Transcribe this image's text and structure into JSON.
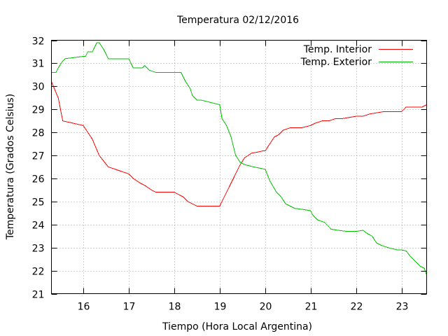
{
  "chart_data": {
    "type": "line",
    "title": "Temperatura 02/12/2016",
    "xlabel": "Tiempo (Hora Local Argentina)",
    "ylabel": "Temperatura (Grados Celsius)",
    "xlim": [
      15.3,
      23.55
    ],
    "ylim": [
      21,
      32
    ],
    "x_ticks": [
      16,
      17,
      18,
      19,
      20,
      21,
      22,
      23
    ],
    "y_ticks": [
      21,
      22,
      23,
      24,
      25,
      26,
      27,
      28,
      29,
      30,
      31,
      32
    ],
    "grid": true,
    "legend_position": "top-right",
    "series": [
      {
        "name": "Temp. Interior",
        "color": "#ff0000",
        "x": [
          15.3,
          15.45,
          15.55,
          16.0,
          16.2,
          16.35,
          16.55,
          16.7,
          17.0,
          17.1,
          17.25,
          17.35,
          17.5,
          17.6,
          17.8,
          18.0,
          18.1,
          18.2,
          18.3,
          18.4,
          18.5,
          18.6,
          18.7,
          19.0,
          19.05,
          19.2,
          19.35,
          19.45,
          19.55,
          19.7,
          19.85,
          19.95,
          20.0,
          20.1,
          20.2,
          20.3,
          20.4,
          20.55,
          20.65,
          20.8,
          21.0,
          21.1,
          21.25,
          21.4,
          21.55,
          21.7,
          21.85,
          22.0,
          22.15,
          22.3,
          22.45,
          22.6,
          22.8,
          23.0,
          23.1,
          23.25,
          23.45,
          23.55
        ],
        "y": [
          30.2,
          29.5,
          28.5,
          28.3,
          27.7,
          27.0,
          26.5,
          26.4,
          26.2,
          26.0,
          25.8,
          25.7,
          25.5,
          25.4,
          25.4,
          25.4,
          25.3,
          25.2,
          25.0,
          24.9,
          24.8,
          24.8,
          24.8,
          24.8,
          25.0,
          25.6,
          26.2,
          26.6,
          26.9,
          27.1,
          27.15,
          27.2,
          27.2,
          27.5,
          27.8,
          27.9,
          28.1,
          28.2,
          28.2,
          28.2,
          28.3,
          28.4,
          28.5,
          28.5,
          28.6,
          28.6,
          28.65,
          28.7,
          28.7,
          28.8,
          28.85,
          28.9,
          28.9,
          28.9,
          29.1,
          29.1,
          29.1,
          29.2
        ]
      },
      {
        "name": "Temp. Exterior",
        "color": "#00c000",
        "x": [
          15.3,
          15.4,
          15.45,
          15.55,
          15.6,
          15.8,
          16.0,
          16.05,
          16.1,
          16.2,
          16.25,
          16.3,
          16.35,
          16.45,
          16.55,
          16.7,
          17.0,
          17.1,
          17.3,
          17.35,
          17.45,
          17.6,
          18.0,
          18.15,
          18.25,
          18.35,
          18.4,
          18.5,
          18.6,
          18.8,
          19.0,
          19.05,
          19.15,
          19.25,
          19.35,
          19.45,
          19.55,
          19.75,
          20.0,
          20.1,
          20.25,
          20.35,
          20.45,
          20.55,
          20.65,
          20.85,
          21.0,
          21.05,
          21.15,
          21.3,
          21.45,
          21.6,
          21.8,
          22.0,
          22.15,
          22.25,
          22.35,
          22.45,
          22.55,
          22.7,
          22.9,
          23.0,
          23.1,
          23.2,
          23.3,
          23.4,
          23.5,
          23.55
        ],
        "y": [
          30.6,
          30.6,
          30.8,
          31.1,
          31.2,
          31.25,
          31.3,
          31.3,
          31.5,
          31.5,
          31.7,
          31.9,
          31.9,
          31.6,
          31.2,
          31.2,
          31.2,
          30.8,
          30.8,
          30.9,
          30.7,
          30.6,
          30.6,
          30.6,
          30.2,
          29.9,
          29.6,
          29.4,
          29.4,
          29.3,
          29.2,
          28.6,
          28.3,
          27.8,
          27.0,
          26.7,
          26.6,
          26.5,
          26.4,
          25.9,
          25.4,
          25.2,
          24.9,
          24.8,
          24.7,
          24.65,
          24.6,
          24.4,
          24.2,
          24.1,
          23.8,
          23.75,
          23.7,
          23.7,
          23.75,
          23.6,
          23.5,
          23.2,
          23.1,
          23.0,
          22.9,
          22.9,
          22.85,
          22.6,
          22.4,
          22.2,
          22.1,
          21.8
        ]
      }
    ]
  }
}
